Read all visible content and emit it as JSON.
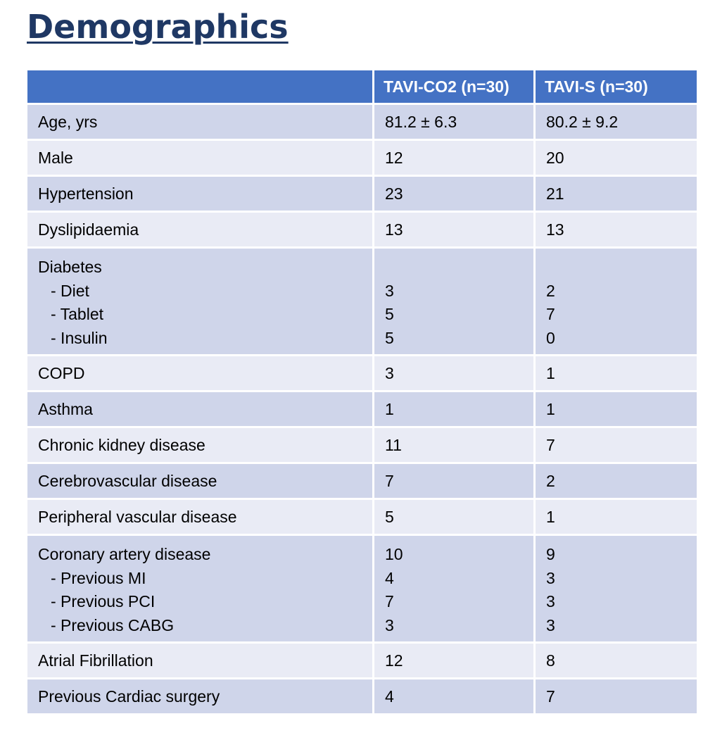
{
  "title": "Demographics",
  "table": {
    "headers": [
      "",
      "TAVI-CO2 (n=30)",
      "TAVI-S (n=30)"
    ],
    "rows": {
      "age": {
        "label": "Age, yrs",
        "co2": "81.2 ± 6.3",
        "s": "80.2 ± 9.2"
      },
      "male": {
        "label": "Male",
        "co2": "12",
        "s": "20"
      },
      "hypertension": {
        "label": "Hypertension",
        "co2": "23",
        "s": "21"
      },
      "dyslipidaemia": {
        "label": "Dyslipidaemia",
        "co2": "13",
        "s": "13"
      },
      "diabetes": {
        "label": "Diabetes",
        "co2": "",
        "s": "",
        "sub": [
          {
            "label": "- Diet",
            "co2": "3",
            "s": "2"
          },
          {
            "label": "- Tablet",
            "co2": "5",
            "s": "7"
          },
          {
            "label": "- Insulin",
            "co2": "5",
            "s": "0"
          }
        ]
      },
      "copd": {
        "label": "COPD",
        "co2": "3",
        "s": "1"
      },
      "asthma": {
        "label": "Asthma",
        "co2": "1",
        "s": "1"
      },
      "ckd": {
        "label": "Chronic kidney disease",
        "co2": "11",
        "s": "7"
      },
      "cerebrovascular": {
        "label": "Cerebrovascular disease",
        "co2": "7",
        "s": "2"
      },
      "pvd": {
        "label": "Peripheral vascular disease",
        "co2": "5",
        "s": "1"
      },
      "cad": {
        "label": "Coronary artery disease",
        "co2": "10",
        "s": "9",
        "sub": [
          {
            "label": "- Previous MI",
            "co2": "4",
            "s": "3"
          },
          {
            "label": "- Previous PCI",
            "co2": "7",
            "s": "3"
          },
          {
            "label": "- Previous CABG",
            "co2": "3",
            "s": "3"
          }
        ]
      },
      "af": {
        "label": "Atrial Fibrillation",
        "co2": "12",
        "s": "8"
      },
      "cardiac_surgery": {
        "label": "Previous Cardiac surgery",
        "co2": "4",
        "s": "7"
      }
    }
  }
}
